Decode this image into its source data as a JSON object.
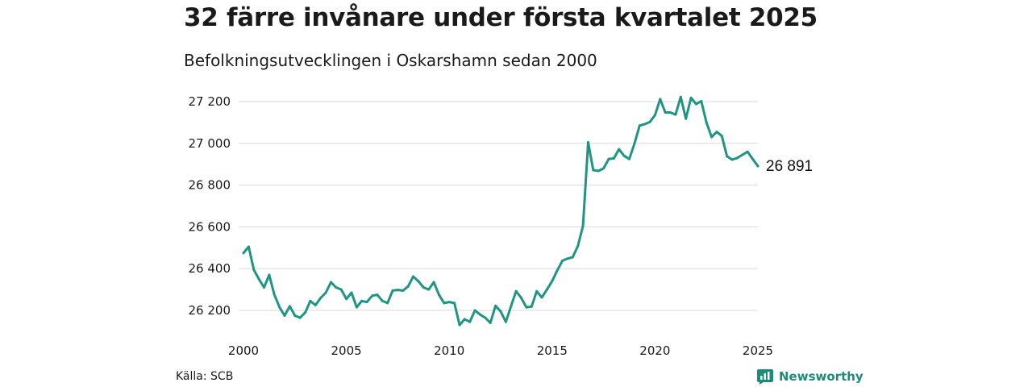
{
  "title": "32 färre invånare under första kvartalet 2025",
  "subtitle": "Befolkningsutvecklingen i Oskarshamn sedan 2000",
  "source": "Källa: SCB",
  "brand": {
    "name": "Newsworthy",
    "icon": "newsworthy-logo-icon",
    "color": "#1f8a78"
  },
  "chart_data": {
    "type": "line",
    "title": "32 färre invånare under första kvartalet 2025",
    "subtitle": "Befolkningsutvecklingen i Oskarshamn sedan 2000",
    "xlabel": "",
    "ylabel": "",
    "xlim": [
      2000,
      2025
    ],
    "ylim": [
      26100,
      27280
    ],
    "x_ticks": [
      2000,
      2005,
      2010,
      2015,
      2020,
      2025
    ],
    "x_tick_labels": [
      "2000",
      "2005",
      "2010",
      "2015",
      "2020",
      "2025"
    ],
    "y_ticks": [
      26200,
      26400,
      26600,
      26800,
      27000,
      27200
    ],
    "y_tick_labels": [
      "26 200",
      "26 400",
      "26 600",
      "26 800",
      "27 000",
      "27 200"
    ],
    "grid": true,
    "color": "#1f9583",
    "end_label": "26 891",
    "series": [
      {
        "name": "",
        "x": [
          2000.0,
          2000.25,
          2000.5,
          2000.75,
          2001.0,
          2001.25,
          2001.5,
          2001.75,
          2002.0,
          2002.25,
          2002.5,
          2002.75,
          2003.0,
          2003.25,
          2003.5,
          2003.75,
          2004.0,
          2004.25,
          2004.5,
          2004.75,
          2005.0,
          2005.25,
          2005.5,
          2005.75,
          2006.0,
          2006.25,
          2006.5,
          2006.75,
          2007.0,
          2007.25,
          2007.5,
          2007.75,
          2008.0,
          2008.25,
          2008.5,
          2008.75,
          2009.0,
          2009.25,
          2009.5,
          2009.75,
          2010.0,
          2010.25,
          2010.5,
          2010.75,
          2011.0,
          2011.25,
          2011.5,
          2011.75,
          2012.0,
          2012.25,
          2012.5,
          2012.75,
          2013.0,
          2013.25,
          2013.5,
          2013.75,
          2014.0,
          2014.25,
          2014.5,
          2014.75,
          2015.0,
          2015.25,
          2015.5,
          2015.75,
          2016.0,
          2016.25,
          2016.5,
          2016.75,
          2017.0,
          2017.25,
          2017.5,
          2017.75,
          2018.0,
          2018.25,
          2018.5,
          2018.75,
          2019.0,
          2019.25,
          2019.5,
          2019.75,
          2020.0,
          2020.25,
          2020.5,
          2020.75,
          2021.0,
          2021.25,
          2021.5,
          2021.75,
          2022.0,
          2022.25,
          2022.5,
          2022.75,
          2023.0,
          2023.25,
          2023.5,
          2023.75,
          2024.0,
          2024.25,
          2024.5,
          2024.75,
          2025.0
        ],
        "y": [
          26475,
          26505,
          26395,
          26350,
          26310,
          26370,
          26275,
          26215,
          26175,
          26220,
          26175,
          26165,
          26190,
          26245,
          26225,
          26260,
          26285,
          26335,
          26310,
          26300,
          26255,
          26285,
          26215,
          26245,
          26240,
          26270,
          26275,
          26245,
          26235,
          26295,
          26298,
          26295,
          26315,
          26362,
          26340,
          26310,
          26300,
          26335,
          26275,
          26235,
          26240,
          26235,
          26130,
          26158,
          26145,
          26200,
          26180,
          26165,
          26140,
          26222,
          26195,
          26145,
          26220,
          26292,
          26260,
          26215,
          26218,
          26292,
          26262,
          26300,
          26340,
          26392,
          26438,
          26448,
          26455,
          26508,
          26605,
          27005,
          26872,
          26868,
          26880,
          26925,
          26928,
          26972,
          26940,
          26925,
          26998,
          27085,
          27092,
          27102,
          27135,
          27212,
          27148,
          27148,
          27138,
          27222,
          27118,
          27218,
          27188,
          27202,
          27100,
          27030,
          27055,
          27035,
          26938,
          26922,
          26930,
          26945,
          26960,
          26925,
          26891
        ]
      }
    ]
  }
}
